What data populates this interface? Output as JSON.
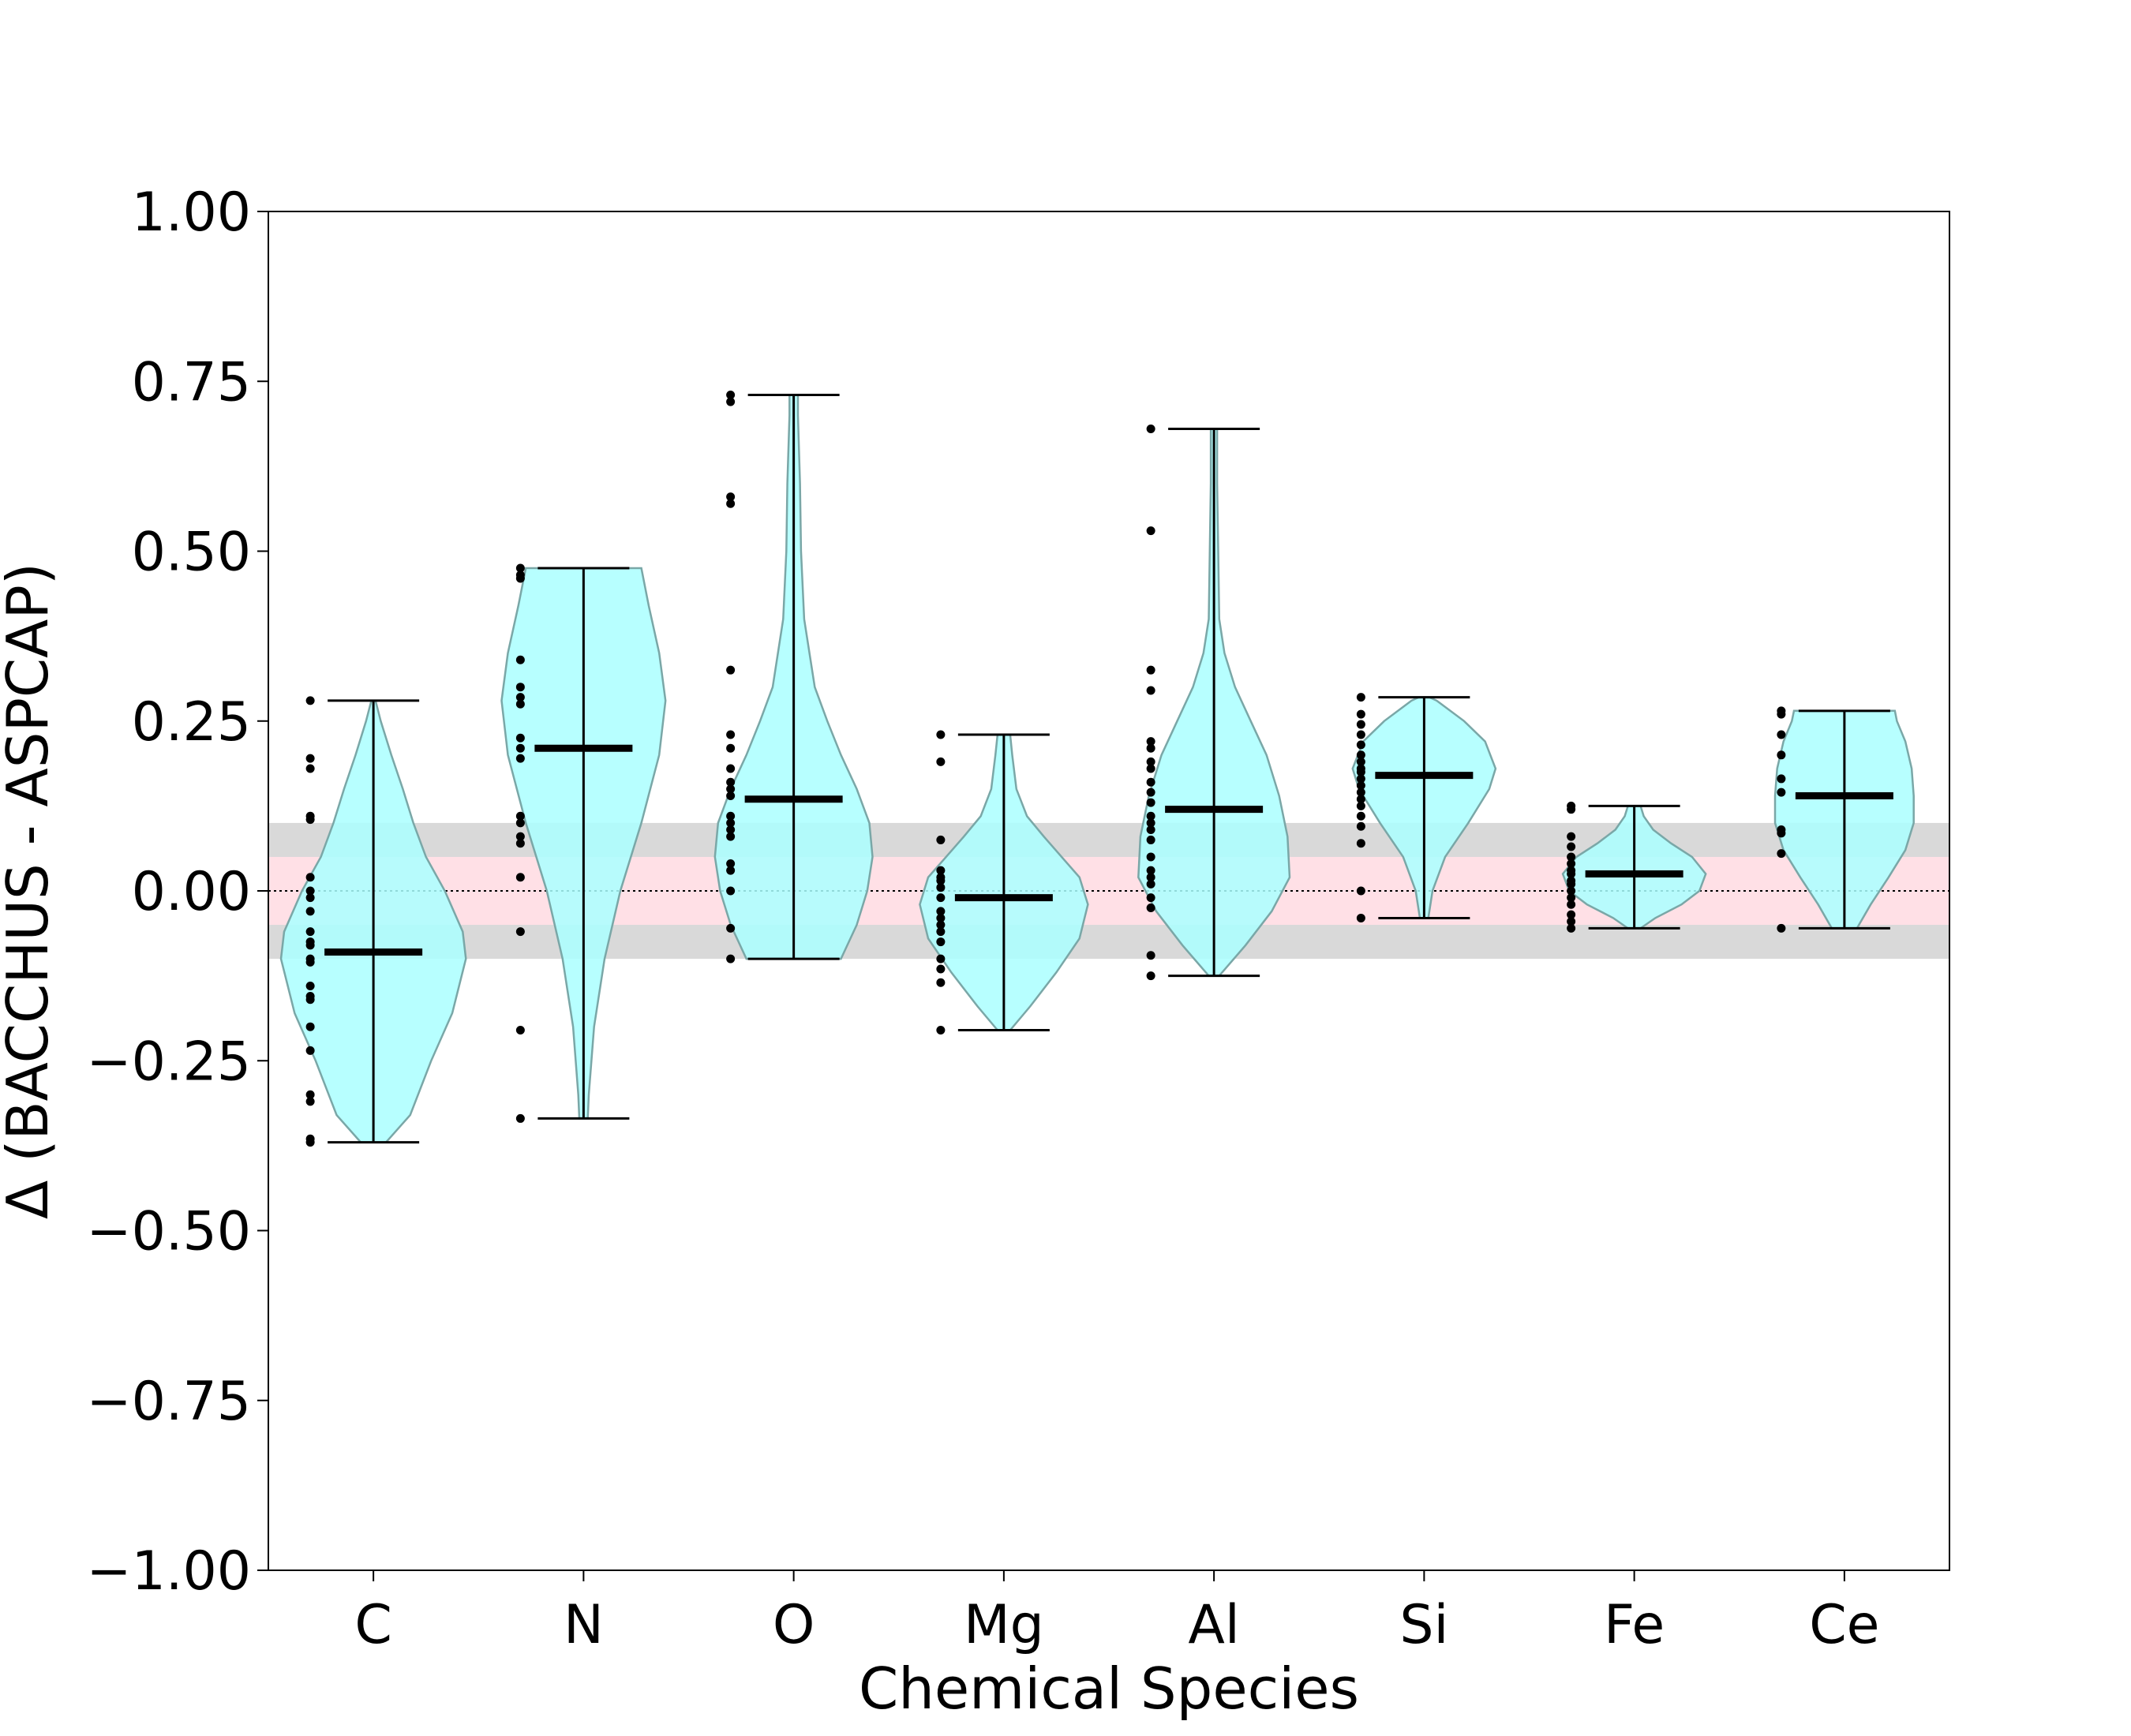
{
  "chart_data": {
    "type": "violin",
    "title": "",
    "xlabel": "Chemical Species",
    "ylabel": "Δ (BACCHUS - ASPCAP)",
    "ylim": [
      -1.0,
      1.0
    ],
    "yticks": [
      "1.00",
      "0.75",
      "0.50",
      "0.25",
      "0.00",
      "−0.25",
      "−0.50",
      "−0.75",
      "−1.00"
    ],
    "ytick_values": [
      1.0,
      0.75,
      0.5,
      0.25,
      0.0,
      -0.25,
      -0.5,
      -0.75,
      -1.0
    ],
    "categories": [
      "C",
      "N",
      "O",
      "Mg",
      "Al",
      "Si",
      "Fe",
      "Ce"
    ],
    "bands": [
      {
        "name": "gray band",
        "from": -0.1,
        "to": 0.1,
        "color": "#d9d9d9"
      },
      {
        "name": "pink band",
        "from": -0.05,
        "to": 0.05,
        "color": "#ffe0e6"
      }
    ],
    "zero_line": 0.0,
    "violin_color": "#aaffff",
    "violin_edge": "#7aa7a7",
    "series": [
      {
        "name": "C",
        "min": -0.37,
        "max": 0.28,
        "median": -0.09,
        "profile": [
          [
            -0.37,
            0.12
          ],
          [
            -0.33,
            0.35
          ],
          [
            -0.25,
            0.55
          ],
          [
            -0.18,
            0.75
          ],
          [
            -0.1,
            0.88
          ],
          [
            -0.06,
            0.85
          ],
          [
            0.0,
            0.68
          ],
          [
            0.05,
            0.5
          ],
          [
            0.1,
            0.38
          ],
          [
            0.15,
            0.28
          ],
          [
            0.2,
            0.17
          ],
          [
            0.25,
            0.07
          ],
          [
            0.28,
            0.02
          ]
        ],
        "points": [
          0.28,
          0.195,
          0.18,
          0.11,
          0.105,
          0.02,
          0.0,
          -0.01,
          -0.03,
          -0.06,
          -0.075,
          -0.08,
          -0.1,
          -0.105,
          -0.14,
          -0.155,
          -0.16,
          -0.2,
          -0.235,
          -0.3,
          -0.31,
          -0.365,
          -0.37
        ]
      },
      {
        "name": "N",
        "min": -0.335,
        "max": 0.475,
        "median": 0.21,
        "profile": [
          [
            -0.335,
            0.04
          ],
          [
            -0.3,
            0.05
          ],
          [
            -0.2,
            0.1
          ],
          [
            -0.1,
            0.2
          ],
          [
            0.0,
            0.35
          ],
          [
            0.1,
            0.55
          ],
          [
            0.2,
            0.72
          ],
          [
            0.28,
            0.78
          ],
          [
            0.35,
            0.72
          ],
          [
            0.42,
            0.62
          ],
          [
            0.475,
            0.55
          ]
        ],
        "points": [
          0.475,
          0.465,
          0.46,
          0.34,
          0.3,
          0.285,
          0.275,
          0.225,
          0.21,
          0.195,
          0.11,
          0.1,
          0.08,
          0.07,
          0.02,
          -0.06,
          -0.205,
          -0.335
        ]
      },
      {
        "name": "O",
        "min": -0.1,
        "max": 0.73,
        "median": 0.135,
        "profile": [
          [
            -0.1,
            0.45
          ],
          [
            -0.05,
            0.6
          ],
          [
            0.0,
            0.7
          ],
          [
            0.05,
            0.75
          ],
          [
            0.1,
            0.72
          ],
          [
            0.15,
            0.6
          ],
          [
            0.2,
            0.45
          ],
          [
            0.25,
            0.32
          ],
          [
            0.3,
            0.2
          ],
          [
            0.4,
            0.1
          ],
          [
            0.5,
            0.07
          ],
          [
            0.6,
            0.06
          ],
          [
            0.7,
            0.04
          ],
          [
            0.73,
            0.04
          ]
        ],
        "points": [
          0.73,
          0.72,
          0.58,
          0.57,
          0.325,
          0.23,
          0.21,
          0.18,
          0.16,
          0.15,
          0.14,
          0.11,
          0.1,
          0.09,
          0.08,
          0.04,
          0.03,
          0.0,
          -0.055,
          -0.1
        ]
      },
      {
        "name": "Mg",
        "min": -0.205,
        "max": 0.23,
        "median": -0.01,
        "profile": [
          [
            -0.205,
            0.06
          ],
          [
            -0.17,
            0.25
          ],
          [
            -0.12,
            0.5
          ],
          [
            -0.07,
            0.72
          ],
          [
            -0.02,
            0.8
          ],
          [
            0.02,
            0.72
          ],
          [
            0.05,
            0.55
          ],
          [
            0.08,
            0.38
          ],
          [
            0.11,
            0.22
          ],
          [
            0.15,
            0.12
          ],
          [
            0.2,
            0.08
          ],
          [
            0.23,
            0.06
          ]
        ],
        "points": [
          0.23,
          0.19,
          0.075,
          0.03,
          0.02,
          0.015,
          0.005,
          -0.01,
          -0.03,
          -0.04,
          -0.05,
          -0.06,
          -0.075,
          -0.1,
          -0.115,
          -0.135,
          -0.205
        ]
      },
      {
        "name": "Al",
        "min": -0.125,
        "max": 0.68,
        "median": 0.12,
        "profile": [
          [
            -0.125,
            0.05
          ],
          [
            -0.08,
            0.3
          ],
          [
            -0.03,
            0.55
          ],
          [
            0.02,
            0.72
          ],
          [
            0.08,
            0.7
          ],
          [
            0.14,
            0.62
          ],
          [
            0.2,
            0.5
          ],
          [
            0.25,
            0.35
          ],
          [
            0.3,
            0.2
          ],
          [
            0.35,
            0.1
          ],
          [
            0.4,
            0.05
          ],
          [
            0.5,
            0.04
          ],
          [
            0.6,
            0.03
          ],
          [
            0.68,
            0.03
          ]
        ],
        "points": [
          0.68,
          0.53,
          0.325,
          0.295,
          0.22,
          0.21,
          0.19,
          0.18,
          0.16,
          0.145,
          0.13,
          0.11,
          0.1,
          0.09,
          0.075,
          0.05,
          0.03,
          0.02,
          0.01,
          -0.01,
          -0.025,
          -0.095,
          -0.125
        ]
      },
      {
        "name": "Si",
        "min": -0.04,
        "max": 0.285,
        "median": 0.17,
        "profile": [
          [
            -0.04,
            0.04
          ],
          [
            0.0,
            0.08
          ],
          [
            0.05,
            0.2
          ],
          [
            0.1,
            0.42
          ],
          [
            0.15,
            0.62
          ],
          [
            0.18,
            0.68
          ],
          [
            0.22,
            0.58
          ],
          [
            0.25,
            0.38
          ],
          [
            0.28,
            0.12
          ],
          [
            0.285,
            0.05
          ]
        ],
        "points": [
          0.285,
          0.26,
          0.245,
          0.23,
          0.215,
          0.2,
          0.19,
          0.18,
          0.175,
          0.165,
          0.155,
          0.145,
          0.135,
          0.125,
          0.11,
          0.095,
          0.07,
          0.0,
          -0.04
        ]
      },
      {
        "name": "Fe",
        "min": -0.055,
        "max": 0.125,
        "median": 0.025,
        "profile": [
          [
            -0.055,
            0.06
          ],
          [
            -0.04,
            0.2
          ],
          [
            -0.02,
            0.45
          ],
          [
            0.0,
            0.62
          ],
          [
            0.025,
            0.68
          ],
          [
            0.05,
            0.55
          ],
          [
            0.07,
            0.35
          ],
          [
            0.09,
            0.18
          ],
          [
            0.11,
            0.09
          ],
          [
            0.125,
            0.06
          ]
        ],
        "points": [
          0.125,
          0.12,
          0.08,
          0.065,
          0.05,
          0.04,
          0.03,
          0.025,
          0.015,
          0.01,
          0.0,
          -0.01,
          -0.02,
          -0.035,
          -0.045,
          -0.055
        ]
      },
      {
        "name": "Ce",
        "min": -0.055,
        "max": 0.265,
        "median": 0.14,
        "profile": [
          [
            -0.055,
            0.12
          ],
          [
            -0.02,
            0.25
          ],
          [
            0.02,
            0.42
          ],
          [
            0.06,
            0.58
          ],
          [
            0.1,
            0.66
          ],
          [
            0.14,
            0.66
          ],
          [
            0.18,
            0.64
          ],
          [
            0.22,
            0.58
          ],
          [
            0.25,
            0.5
          ],
          [
            0.265,
            0.48
          ]
        ],
        "points": [
          0.265,
          0.26,
          0.23,
          0.2,
          0.165,
          0.145,
          0.09,
          0.085,
          0.055,
          -0.055
        ]
      }
    ]
  }
}
